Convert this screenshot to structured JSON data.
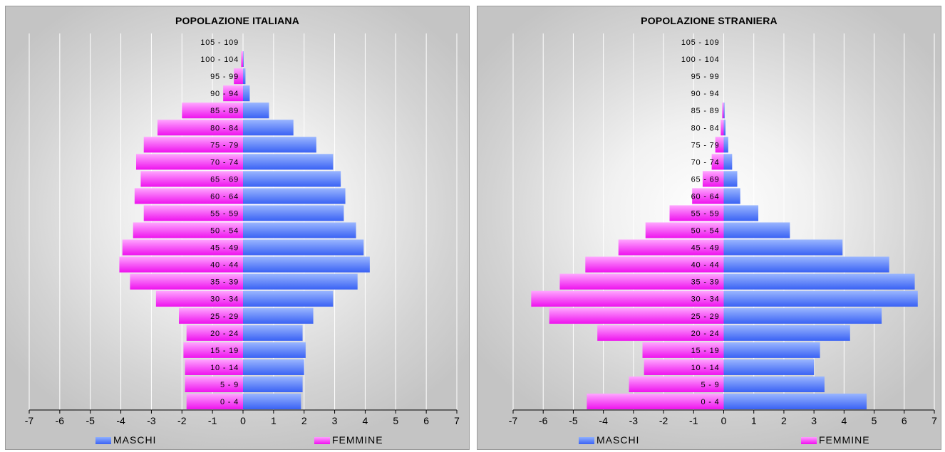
{
  "colors": {
    "maschi": "#4a74f7",
    "femmine": "#f53cf5",
    "grid": "#ffffff",
    "axis": "#000000"
  },
  "legend": {
    "maschi": "MASCHI",
    "femmine": "FEMMINE"
  },
  "chart_data": [
    {
      "type": "bar",
      "orientation": "horizontal",
      "title": "POPOLAZIONE ITALIANA",
      "xlim": [
        -7,
        7
      ],
      "xticks": [
        "-7",
        "-6",
        "-5",
        "-4",
        "-3",
        "-2",
        "-1",
        "0",
        "1",
        "2",
        "3",
        "4",
        "5",
        "6",
        "7"
      ],
      "grid": "vertical",
      "legend_position": "bottom",
      "categories": [
        "0 - 4",
        "5 - 9",
        "10 - 14",
        "15 - 19",
        "20 - 24",
        "25 - 29",
        "30 - 34",
        "35 - 39",
        "40 - 44",
        "45 - 49",
        "50 - 54",
        "55 - 59",
        "60 - 64",
        "65 - 69",
        "70 - 74",
        "75 - 79",
        "80 - 84",
        "85 - 89",
        "90 - 94",
        "95 - 99",
        "100 - 104",
        "105 - 109"
      ],
      "series": [
        {
          "name": "MASCHI",
          "values": [
            1.9,
            1.95,
            2.0,
            2.05,
            1.95,
            2.3,
            2.95,
            3.75,
            4.15,
            3.95,
            3.7,
            3.3,
            3.35,
            3.2,
            2.95,
            2.4,
            1.65,
            0.85,
            0.22,
            0.08,
            0.02,
            0.0
          ]
        },
        {
          "name": "FEMMINE",
          "values": [
            -1.85,
            -1.9,
            -1.9,
            -1.95,
            -1.85,
            -2.1,
            -2.85,
            -3.7,
            -4.05,
            -3.95,
            -3.6,
            -3.25,
            -3.55,
            -3.35,
            -3.5,
            -3.25,
            -2.8,
            -2.0,
            -0.65,
            -0.3,
            -0.06,
            0.0
          ]
        }
      ]
    },
    {
      "type": "bar",
      "orientation": "horizontal",
      "title": "POPOLAZIONE STRANIERA",
      "xlim": [
        -7,
        7
      ],
      "xticks": [
        "-7",
        "-6",
        "-5",
        "-4",
        "-3",
        "-2",
        "-1",
        "0",
        "1",
        "2",
        "3",
        "4",
        "5",
        "6",
        "7"
      ],
      "grid": "vertical",
      "legend_position": "bottom",
      "categories": [
        "0 - 4",
        "5 - 9",
        "10 - 14",
        "15 - 19",
        "20 - 24",
        "25 - 29",
        "30 - 34",
        "35 - 39",
        "40 - 44",
        "45 - 49",
        "50 - 54",
        "55 - 59",
        "60 - 64",
        "65 - 69",
        "70 - 74",
        "75 - 79",
        "80 - 84",
        "85 - 89",
        "90 - 94",
        "95 - 99",
        "100 - 104",
        "105 - 109"
      ],
      "series": [
        {
          "name": "MASCHI",
          "values": [
            4.75,
            3.35,
            3.0,
            3.2,
            4.2,
            5.25,
            6.45,
            6.35,
            5.5,
            3.95,
            2.2,
            1.15,
            0.55,
            0.45,
            0.28,
            0.15,
            0.06,
            0.03,
            0.0,
            0.0,
            0.0,
            0.0
          ]
        },
        {
          "name": "FEMMINE",
          "values": [
            -4.55,
            -3.15,
            -2.65,
            -2.7,
            -4.2,
            -5.8,
            -6.4,
            -5.45,
            -4.6,
            -3.5,
            -2.6,
            -1.8,
            -1.05,
            -0.7,
            -0.4,
            -0.28,
            -0.1,
            -0.05,
            0.0,
            0.0,
            0.0,
            0.0
          ]
        }
      ]
    }
  ]
}
